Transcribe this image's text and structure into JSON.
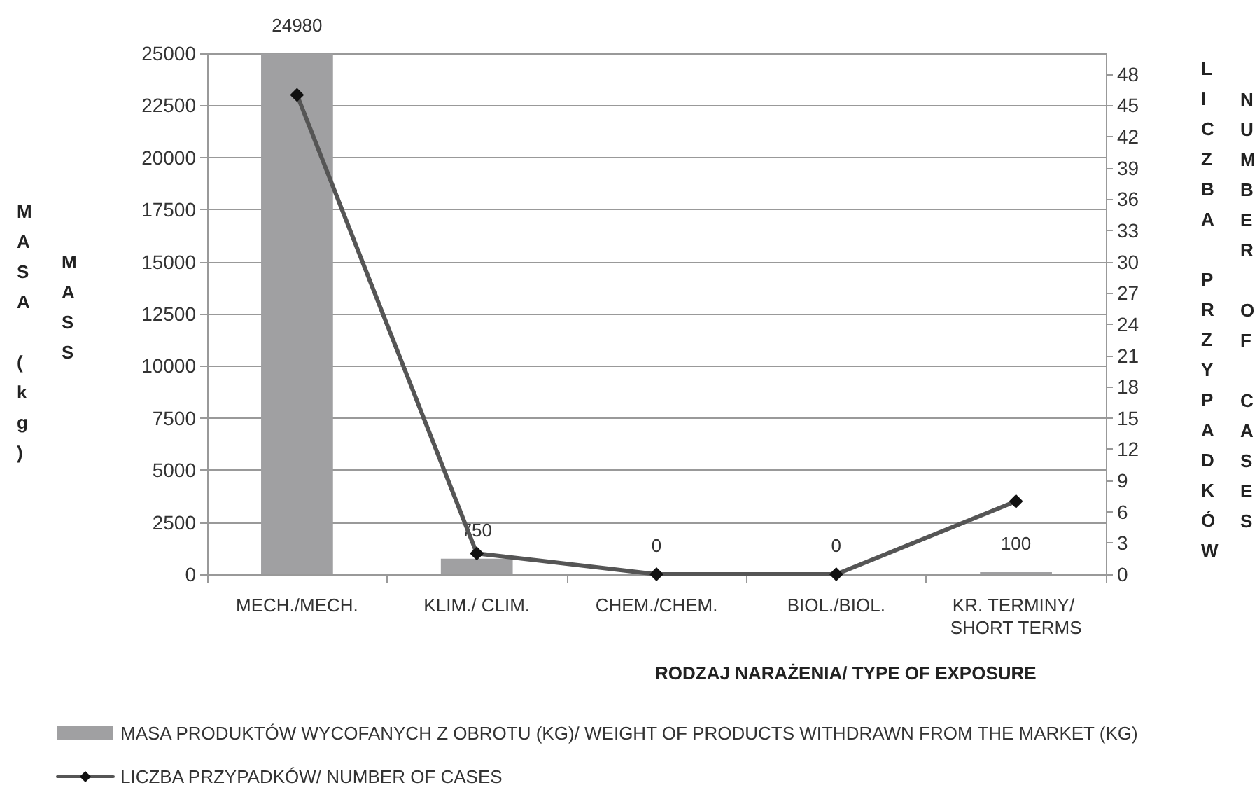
{
  "chart_data": {
    "type": "bar",
    "categories": [
      "MECH./MECH.",
      "KLIM./ CLIM.",
      "CHEM./CHEM.",
      "BIOL./BIOL.",
      "KR. TERMINY/ SHORT TERMS"
    ],
    "series": [
      {
        "name": "MASA PRODUKTÓW WYCOFANYCH Z OBROTU (KG)/ WEIGHT OF PRODUCTS WITHDRAWN FROM THE MARKET (KG)",
        "color": "#a0a0a2",
        "values": [
          24980,
          750,
          0,
          0,
          100
        ],
        "value_labels": [
          "24980",
          "750",
          "0",
          "0",
          "100"
        ]
      },
      {
        "name": "LICZBA PRZYPADKÓW/ NUMBER OF CASES",
        "type": "line",
        "axis": "y2",
        "color": "#555555",
        "marker": "diamond",
        "values": [
          46,
          2,
          0,
          0,
          7
        ]
      }
    ],
    "xlabel": "RODZAJ NARAŻENIA/ TYPE OF EXPOSURE",
    "ylabel": "MASA (kg)",
    "y2label": "LICZBA PRZYPADKÓW",
    "annotations": [
      "MASS",
      "NUMBER OF CASES"
    ],
    "ylim": [
      0,
      25000
    ],
    "yticks": [
      0,
      2500,
      5000,
      7500,
      10000,
      12500,
      15000,
      17500,
      20000,
      22500,
      25000
    ],
    "y2lim": [
      0,
      50
    ],
    "y2ticks": [
      0,
      3,
      6,
      9,
      12,
      15,
      18,
      21,
      24,
      27,
      30,
      33,
      36,
      39,
      42,
      45,
      48
    ],
    "grid": "y",
    "legend": "bottom"
  }
}
